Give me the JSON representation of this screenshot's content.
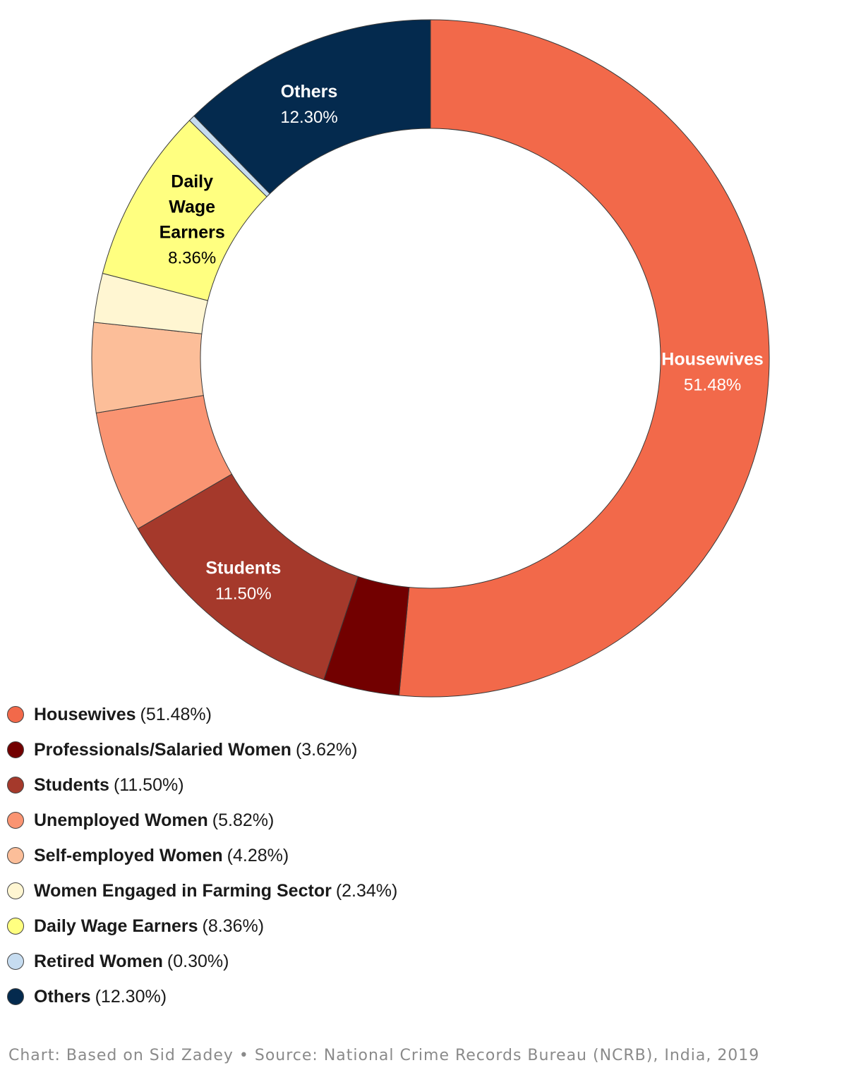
{
  "chart_data": {
    "type": "pie",
    "variant": "donut",
    "categories": [
      "Housewives",
      "Professionals/Salaried Women",
      "Students",
      "Unemployed Women",
      "Self-employed Women",
      "Women Engaged in Farming Sector",
      "Daily Wage Earners",
      "Retired Women",
      "Others"
    ],
    "values": [
      51.48,
      3.62,
      11.5,
      5.82,
      4.28,
      2.34,
      8.36,
      0.3,
      12.3
    ],
    "value_labels": [
      "51.48%",
      "3.62%",
      "11.50%",
      "5.82%",
      "4.28%",
      "2.34%",
      "8.36%",
      "0.30%",
      "12.30%"
    ],
    "colors": [
      "#F2694A",
      "#720000",
      "#A5392B",
      "#FA9472",
      "#FCBE99",
      "#FFF6D2",
      "#FFFF80",
      "#C6DCF0",
      "#042A4E"
    ],
    "label_colors": [
      "#ffffff",
      "#ffffff",
      "#ffffff",
      "#000000",
      "#000000",
      "#000000",
      "#000000",
      "#000000",
      "#ffffff"
    ],
    "slice_labels": [
      {
        "index": 0,
        "lines": [
          "Housewives"
        ],
        "value": "51.48%"
      },
      {
        "index": 2,
        "lines": [
          "Students"
        ],
        "value": "11.50%"
      },
      {
        "index": 6,
        "lines": [
          "Daily",
          "Wage",
          "Earners"
        ],
        "value": "8.36%"
      },
      {
        "index": 8,
        "lines": [
          "Others"
        ],
        "value": "12.30%"
      }
    ],
    "legend_position": "bottom-left",
    "title": ""
  },
  "legend": {
    "items": [
      {
        "name": "Housewives",
        "value": "(51.48%)"
      },
      {
        "name": "Professionals/Salaried Women",
        "value": "(3.62%)"
      },
      {
        "name": "Students",
        "value": "(11.50%)"
      },
      {
        "name": "Unemployed Women",
        "value": "(5.82%)"
      },
      {
        "name": "Self-employed Women",
        "value": "(4.28%)"
      },
      {
        "name": "Women Engaged in Farming Sector",
        "value": "(2.34%)"
      },
      {
        "name": "Daily Wage Earners",
        "value": "(8.36%)"
      },
      {
        "name": "Retired Women",
        "value": "(0.30%)"
      },
      {
        "name": "Others",
        "value": "(12.30%)"
      }
    ]
  },
  "footer": {
    "text": "Chart: Based on Sid Zadey • Source: National Crime Records Bureau (NCRB), India, 2019"
  }
}
